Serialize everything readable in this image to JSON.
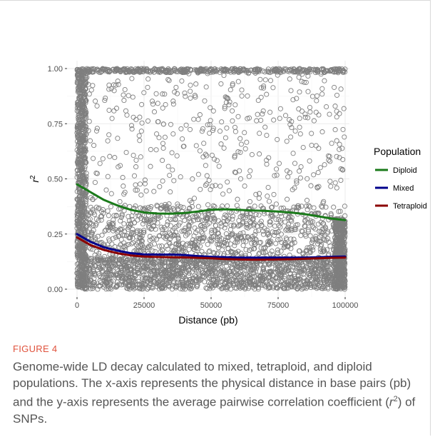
{
  "figure": {
    "label": "FIGURE 4",
    "caption_parts": [
      "Genome-wide LD decay calculated to mixed, tetraploid, and diploid populations. The x-axis represents the physical distance in base pairs (pb) and the y-axis represents the average pairwise correlation coefficient (",
      "r",
      "2",
      ") of SNPs."
    ]
  },
  "chart_data": {
    "type": "scatter",
    "xlabel": "Distance (pb)",
    "ylabel_main": "r",
    "ylabel_sup": "2",
    "xlim": [
      0,
      100000
    ],
    "ylim": [
      0,
      1
    ],
    "x_ticks": [
      0,
      25000,
      50000,
      75000,
      100000
    ],
    "y_ticks": [
      0.0,
      0.25,
      0.5,
      0.75,
      1.0
    ],
    "x_tick_labels": [
      "0",
      "25000",
      "50000",
      "75000",
      "100000"
    ],
    "y_tick_labels": [
      "0.00",
      "0.25",
      "0.50",
      "0.75",
      "1.00"
    ],
    "grid": true,
    "legend": {
      "title": "Population",
      "position": "right",
      "entries": [
        {
          "name": "Diploid",
          "color": "#1a7a1a"
        },
        {
          "name": "Mixed",
          "color": "#00008b"
        },
        {
          "name": "Tetraploid",
          "color": "#8b0000"
        }
      ]
    },
    "point_color": "#7f7f7f",
    "series": [
      {
        "name": "Diploid",
        "color": "#1a7a1a",
        "x": [
          0,
          5000,
          10000,
          15000,
          20000,
          25000,
          30000,
          35000,
          40000,
          45000,
          50000,
          55000,
          60000,
          65000,
          70000,
          75000,
          80000,
          85000,
          90000,
          95000,
          100000
        ],
        "y": [
          0.475,
          0.44,
          0.405,
          0.38,
          0.36,
          0.348,
          0.343,
          0.342,
          0.345,
          0.352,
          0.36,
          0.362,
          0.36,
          0.357,
          0.355,
          0.352,
          0.347,
          0.34,
          0.33,
          0.32,
          0.313
        ]
      },
      {
        "name": "Mixed",
        "color": "#00008b",
        "x": [
          0,
          5000,
          10000,
          15000,
          20000,
          25000,
          30000,
          35000,
          40000,
          45000,
          50000,
          55000,
          60000,
          65000,
          70000,
          75000,
          80000,
          85000,
          90000,
          95000,
          100000
        ],
        "y": [
          0.25,
          0.215,
          0.19,
          0.175,
          0.163,
          0.158,
          0.157,
          0.157,
          0.155,
          0.15,
          0.147,
          0.145,
          0.143,
          0.143,
          0.143,
          0.143,
          0.143,
          0.143,
          0.145,
          0.147,
          0.148
        ]
      },
      {
        "name": "Tetraploid",
        "color": "#8b0000",
        "x": [
          0,
          5000,
          10000,
          15000,
          20000,
          25000,
          30000,
          35000,
          40000,
          45000,
          50000,
          55000,
          60000,
          65000,
          70000,
          75000,
          80000,
          85000,
          90000,
          95000,
          100000
        ],
        "y": [
          0.235,
          0.2,
          0.178,
          0.163,
          0.153,
          0.148,
          0.146,
          0.145,
          0.144,
          0.142,
          0.14,
          0.137,
          0.135,
          0.134,
          0.134,
          0.135,
          0.136,
          0.138,
          0.14,
          0.142,
          0.143
        ]
      }
    ]
  }
}
